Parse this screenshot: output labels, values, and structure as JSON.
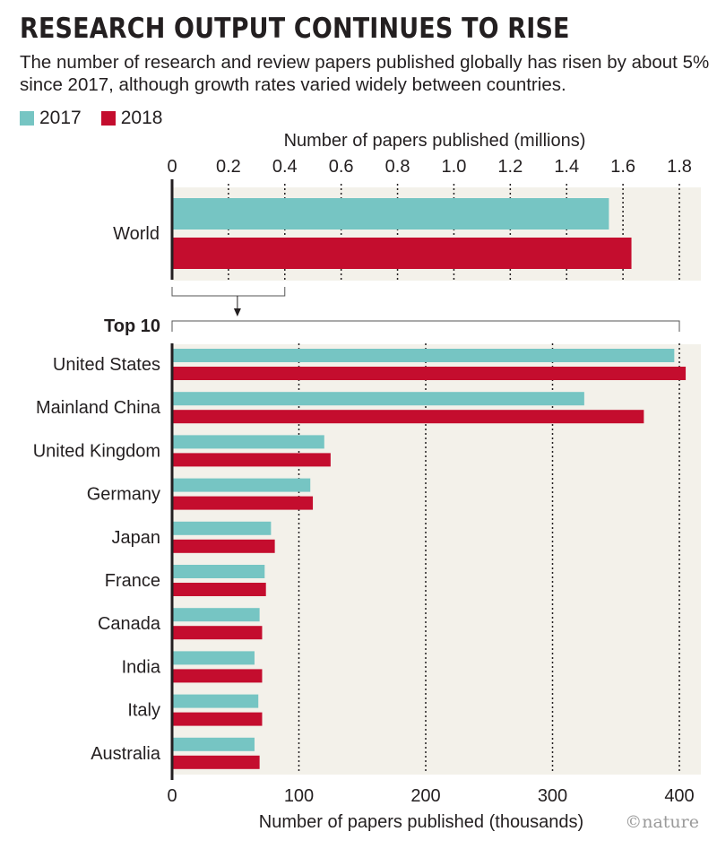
{
  "title": "RESEARCH OUTPUT CONTINUES TO RISE",
  "subtitle": "The number of research and review papers published globally has risen by about 5% since 2017, although growth rates varied widely between countries.",
  "logo": "©nature",
  "colors": {
    "y2017": "#76c5c3",
    "y2018": "#c40d2e",
    "panel": "#f3f1ea"
  },
  "legend": [
    {
      "label": "2017",
      "color": "#76c5c3"
    },
    {
      "label": "2018",
      "color": "#c40d2e"
    }
  ],
  "chart_data": [
    {
      "type": "bar",
      "orientation": "horizontal",
      "xlabel": "Number of papers published (millions)",
      "axis_position": "top",
      "xlim": [
        0,
        1.8
      ],
      "ticks": [
        "0",
        "0.2",
        "0.4",
        "0.6",
        "0.8",
        "1.0",
        "1.2",
        "1.4",
        "1.6",
        "1.8"
      ],
      "categories": [
        "World"
      ],
      "series": [
        {
          "name": "2017",
          "values": [
            1.55
          ]
        },
        {
          "name": "2018",
          "values": [
            1.63
          ]
        }
      ]
    },
    {
      "type": "bar",
      "orientation": "horizontal",
      "group_label": "Top 10",
      "xlabel": "Number of papers published (thousands)",
      "axis_position": "bottom",
      "xlim": [
        0,
        400
      ],
      "ticks": [
        "0",
        "100",
        "200",
        "300",
        "400"
      ],
      "categories": [
        "United States",
        "Mainland China",
        "United Kingdom",
        "Germany",
        "Japan",
        "France",
        "Canada",
        "India",
        "Italy",
        "Australia"
      ],
      "series": [
        {
          "name": "2017",
          "values": [
            396,
            325,
            120,
            109,
            78,
            73,
            69,
            65,
            68,
            65
          ]
        },
        {
          "name": "2018",
          "values": [
            405,
            372,
            125,
            111,
            81,
            74,
            71,
            71,
            71,
            69
          ]
        }
      ]
    }
  ]
}
